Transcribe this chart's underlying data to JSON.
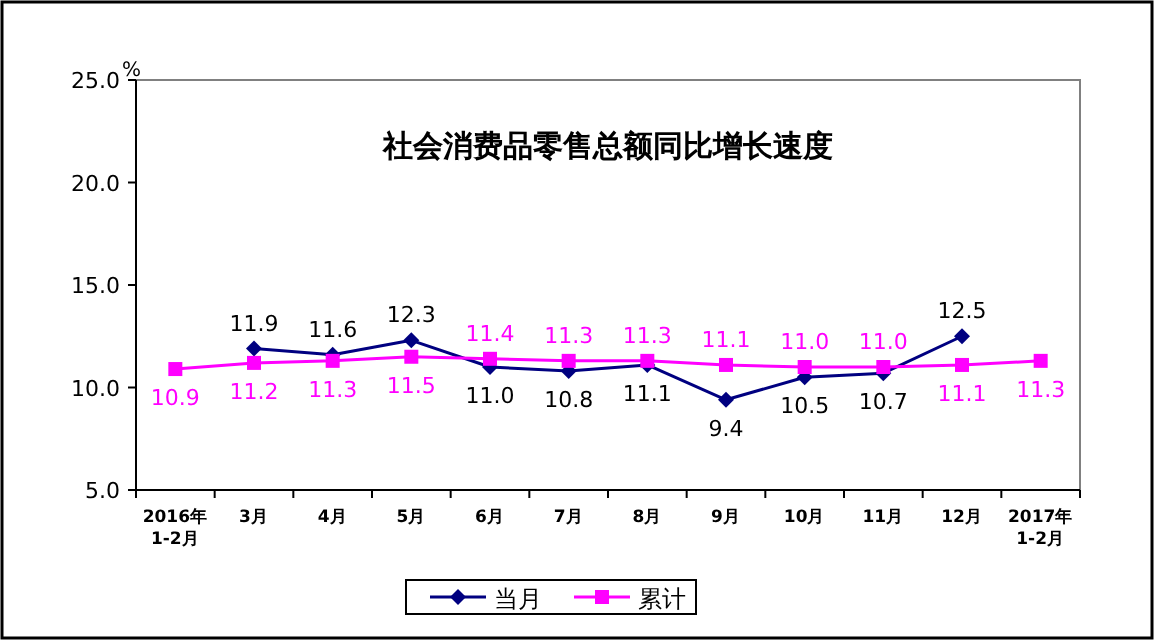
{
  "chart_data": {
    "type": "line",
    "title": "社会消费品零售总额同比增长速度",
    "ylabel": "%",
    "categories": [
      "2016年\n1-2月",
      "3月",
      "4月",
      "5月",
      "6月",
      "7月",
      "8月",
      "9月",
      "10月",
      "11月",
      "12月",
      "2017年\n1-2月"
    ],
    "series": [
      {
        "name": "当月",
        "color": "#000080",
        "marker": "diamond",
        "values": [
          null,
          11.9,
          11.6,
          12.3,
          11.0,
          10.8,
          11.1,
          9.4,
          10.5,
          10.7,
          12.5,
          null
        ],
        "value_labels": [
          null,
          "11.9",
          "11.6",
          "12.3",
          "11.0",
          "10.8",
          "11.1",
          "9.4",
          "10.5",
          "10.7",
          "12.5",
          null
        ]
      },
      {
        "name": "累计",
        "color": "#ff00ff",
        "marker": "square",
        "values": [
          10.9,
          11.2,
          11.3,
          11.5,
          11.4,
          11.3,
          11.3,
          11.1,
          11.0,
          11.0,
          11.1,
          11.3
        ],
        "value_labels": [
          "10.9",
          "11.2",
          "11.3",
          "11.5",
          "11.4",
          "11.3",
          "11.3",
          "11.1",
          "11.0",
          "11.0",
          "11.1",
          "11.3"
        ]
      }
    ],
    "ylim": [
      5,
      25
    ],
    "yticks": [
      {
        "value": 5,
        "label": "5.0"
      },
      {
        "value": 10,
        "label": "10.0"
      },
      {
        "value": 15,
        "label": "15.0"
      },
      {
        "value": 20,
        "label": "20.0"
      },
      {
        "value": 25,
        "label": "25.0"
      }
    ],
    "grid": false,
    "legend": "bottom",
    "line_style": "solid"
  }
}
